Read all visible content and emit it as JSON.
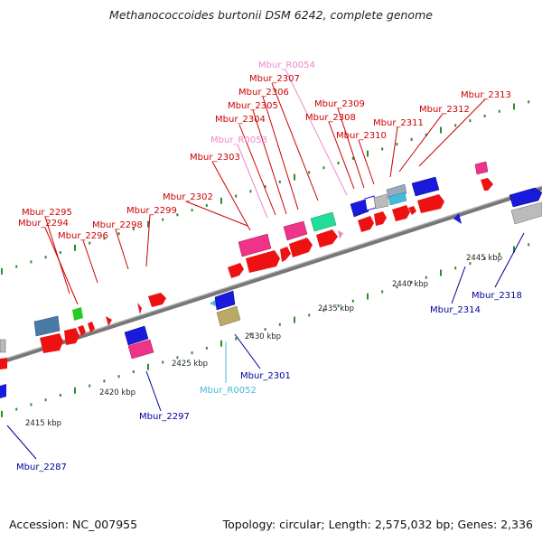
{
  "title": "Methanococcoides burtonii DSM 6242, complete genome",
  "footer": {
    "accession": "Accession: NC_007955",
    "summary": "Topology: circular; Length: 2,575,032 bp; Genes: 2,336"
  },
  "colors": {
    "forward_label": "#cc0000",
    "reverse_label": "#000099",
    "rna_pink": "#ee88cc",
    "rna_cyan": "#44bbdd",
    "backbone": "#888888",
    "tick": "#228822"
  },
  "scale_labels": [
    "2415 kbp",
    "2420 kbp",
    "2425 kbp",
    "2430 kbp",
    "2435 kbp",
    "2440 kbp",
    "2445 kbp"
  ],
  "gene_labels": {
    "top": [
      "Mbur_2295",
      "Mbur_2294",
      "Mbur_2296",
      "Mbur_2298",
      "Mbur_2299",
      "Mbur_2302",
      "Mbur_2303",
      "Mbur_R0053",
      "Mbur_2304",
      "Mbur_2305",
      "Mbur_2306",
      "Mbur_2307",
      "Mbur_R0054",
      "Mbur_2308",
      "Mbur_2309",
      "Mbur_2310",
      "Mbur_2311",
      "Mbur_2312",
      "Mbur_2313"
    ],
    "bottom": [
      "Mbur_2287",
      "Mbur_2297",
      "Mbur_R0052",
      "Mbur_2301",
      "Mbur_2314",
      "Mbur_2318"
    ]
  }
}
